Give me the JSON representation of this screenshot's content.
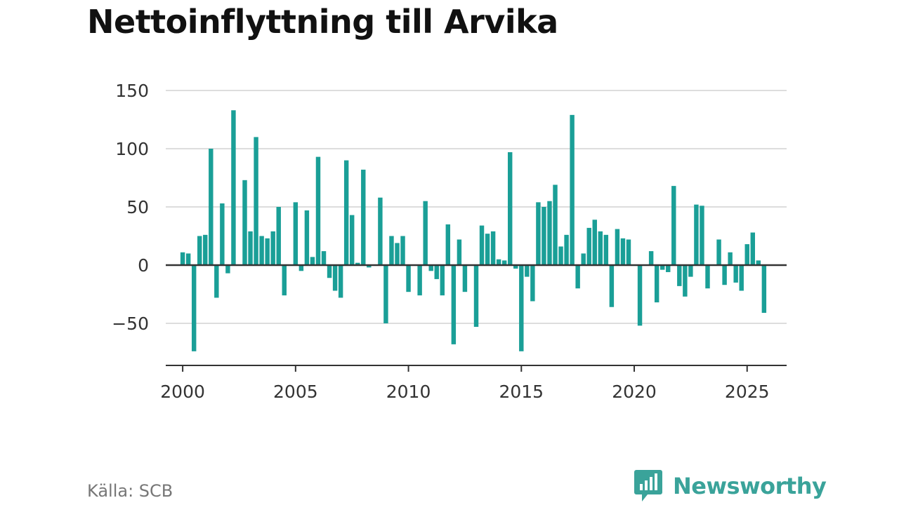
{
  "chart_data": {
    "type": "bar",
    "title": "Nettoinflyttning till Arvika",
    "source": "Källa: SCB",
    "brand": "Newsworthy",
    "colors": {
      "bar": "#1a9f97",
      "zero_line": "#333333",
      "grid": "#dddddd",
      "axis": "#333333"
    },
    "xlim": [
      1999.25,
      2026.75
    ],
    "ylim": [
      -85,
      150
    ],
    "y_ticks": [
      -50,
      0,
      50,
      100,
      150
    ],
    "y_tick_labels": [
      "−50",
      "0",
      "50",
      "100",
      "150"
    ],
    "x_ticks": [
      2000,
      2005,
      2010,
      2015,
      2020,
      2025
    ],
    "x_tick_labels": [
      "2000",
      "2005",
      "2010",
      "2015",
      "2020",
      "2025"
    ],
    "grid": true,
    "start_year": 2000,
    "values": [
      11,
      10,
      -74,
      25,
      26,
      100,
      -28,
      53,
      -7,
      133,
      0,
      73,
      29,
      110,
      25,
      23,
      29,
      50,
      -26,
      0,
      54,
      -5,
      47,
      7,
      93,
      12,
      -11,
      -22,
      -28,
      90,
      43,
      2,
      82,
      -2,
      0,
      58,
      -50,
      25,
      19,
      25,
      -23,
      0,
      -26,
      55,
      -5,
      -12,
      -26,
      35,
      -68,
      22,
      -23,
      0,
      -53,
      34,
      27,
      29,
      5,
      4,
      97,
      -3,
      -74,
      -10,
      -31,
      54,
      50,
      55,
      69,
      16,
      26,
      129,
      -20,
      10,
      32,
      39,
      29,
      26,
      -36,
      31,
      23,
      22,
      0,
      -52,
      0,
      12,
      -32,
      -4,
      -6,
      68,
      -18,
      -27,
      -10,
      52,
      51,
      -20,
      0,
      22,
      -17,
      11,
      -15,
      -22,
      18,
      28,
      4,
      -41
    ]
  }
}
